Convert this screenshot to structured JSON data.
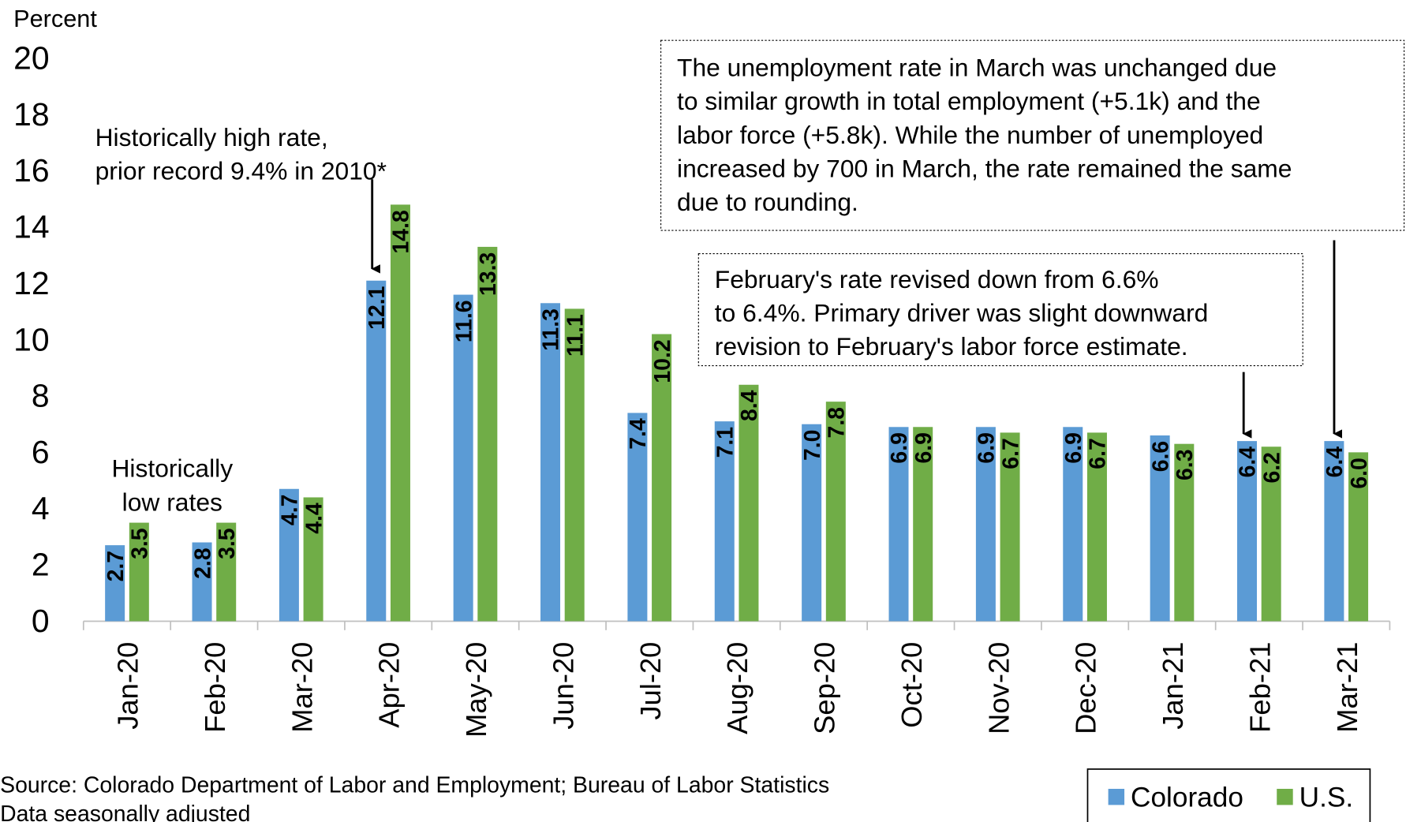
{
  "chart_data": {
    "type": "bar",
    "y_label": "Percent",
    "categories": [
      "Jan-20",
      "Feb-20",
      "Mar-20",
      "Apr-20",
      "May-20",
      "Jun-20",
      "Jul-20",
      "Aug-20",
      "Sep-20",
      "Oct-20",
      "Nov-20",
      "Dec-20",
      "Jan-21",
      "Feb-21",
      "Mar-21"
    ],
    "series": [
      {
        "name": "Colorado",
        "color": "#5b9bd5",
        "values": [
          2.7,
          2.8,
          4.7,
          12.1,
          11.6,
          11.3,
          7.4,
          7.1,
          7.0,
          6.9,
          6.9,
          6.9,
          6.6,
          6.4,
          6.4
        ],
        "value_labels": [
          "2.7",
          "2.8",
          "4.7",
          "12.1",
          "11.6",
          "11.3",
          "7.4",
          "7.1",
          "7.0",
          "6.9",
          "6.9",
          "6.9",
          "6.6",
          "6.4",
          "6.4"
        ]
      },
      {
        "name": "U.S.",
        "color": "#70ad47",
        "values": [
          3.5,
          3.5,
          4.4,
          14.8,
          13.3,
          11.1,
          10.2,
          8.4,
          7.8,
          6.9,
          6.7,
          6.7,
          6.3,
          6.2,
          6.0
        ],
        "value_labels": [
          "3.5",
          "3.5",
          "4.4",
          "14.8",
          "13.3",
          "11.1",
          "10.2",
          "8.4",
          "7.8",
          "6.9",
          "6.7",
          "6.7",
          "6.3",
          "6.2",
          "6.0"
        ]
      }
    ],
    "ylim": [
      0,
      20
    ],
    "yticks": [
      0,
      2,
      4,
      6,
      8,
      10,
      12,
      14,
      16,
      18,
      20
    ],
    "grid": false,
    "legend": "bottom-right",
    "annotations": [
      {
        "lines": [
          "The unemployment rate in March was unchanged due",
          "to similar growth in total employment (+5.1k) and the",
          "labor force (+5.8k). While the number of unemployed",
          "increased by 700 in March, the rate remained the same",
          "due to rounding."
        ]
      },
      {
        "lines": [
          "February's rate revised down from 6.6%",
          "to 6.4%. Primary driver was slight downward",
          "revision to February's labor force estimate."
        ]
      },
      {
        "lines": [
          "Historically high rate,",
          "prior record 9.4% in 2010*"
        ]
      },
      {
        "lines": [
          "Historically",
          "low rates"
        ]
      }
    ],
    "notes": [
      "Source: Colorado Department of Labor and Employment; Bureau of Labor Statistics",
      "Data seasonally adjusted"
    ]
  }
}
